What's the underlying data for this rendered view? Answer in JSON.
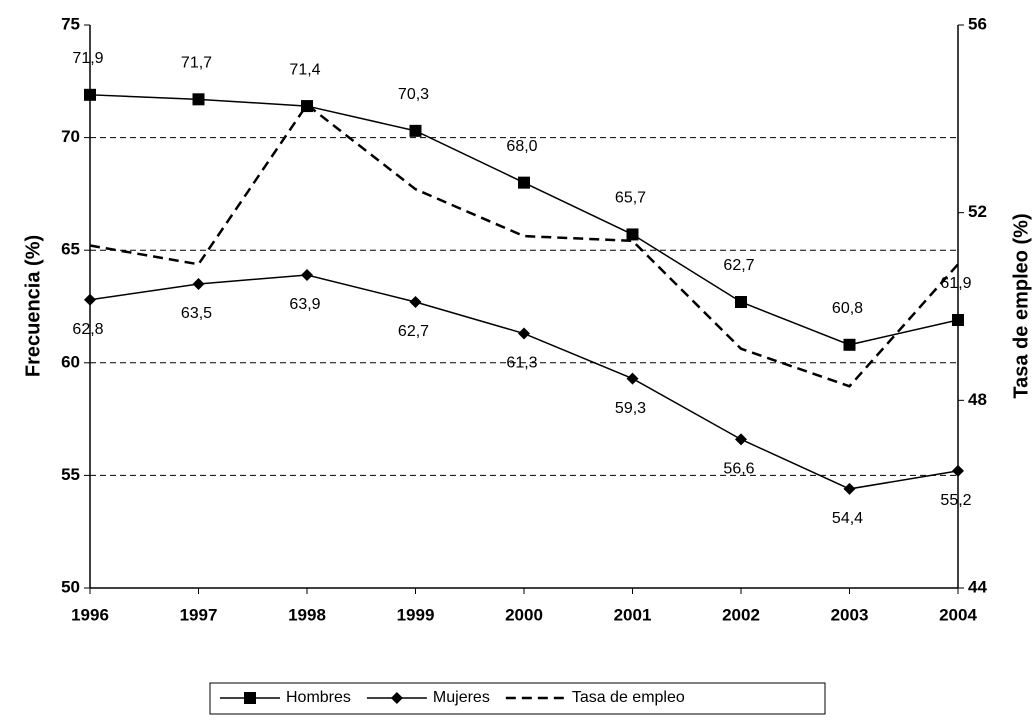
{
  "chart_data": {
    "type": "line",
    "categories": [
      "1996",
      "1997",
      "1998",
      "1999",
      "2000",
      "2001",
      "2002",
      "2003",
      "2004"
    ],
    "y_label": "Frecuencia (%)",
    "y2_label": "Tasa de empleo (%)",
    "ylim": [
      50,
      75
    ],
    "yticks": [
      50,
      55,
      60,
      65,
      70,
      75
    ],
    "y2lim": [
      44,
      56
    ],
    "y2ticks": [
      44,
      48,
      52,
      56
    ],
    "grid": true,
    "legend": "bottom",
    "series": [
      {
        "name": "Hombres",
        "color": "#000000",
        "marker": "square",
        "dash": false,
        "label_position": "above",
        "values": [
          71.9,
          71.7,
          71.4,
          70.3,
          68.0,
          65.7,
          62.7,
          60.8,
          61.9
        ],
        "value_labels": [
          "71,9",
          "71,7",
          "71,4",
          "70,3",
          "68,0",
          "65,7",
          "62,7",
          "60,8",
          "61,9"
        ]
      },
      {
        "name": "Mujeres",
        "color": "#000000",
        "marker": "diamond",
        "dash": false,
        "label_position": "below",
        "values": [
          62.8,
          63.5,
          63.9,
          62.7,
          61.3,
          59.3,
          56.6,
          54.4,
          55.2
        ],
        "value_labels": [
          "62,8",
          "63,5",
          "63,9",
          "62,7",
          "61,3",
          "59,3",
          "56,6",
          "54,4",
          "55,2"
        ]
      },
      {
        "name": "Tasa de empleo",
        "color": "#000000",
        "marker": "none",
        "dash": true,
        "axis": "y2",
        "values": [
          51.3,
          50.9,
          54.3,
          52.5,
          51.5,
          51.4,
          49.1,
          48.3,
          50.9
        ]
      }
    ]
  }
}
